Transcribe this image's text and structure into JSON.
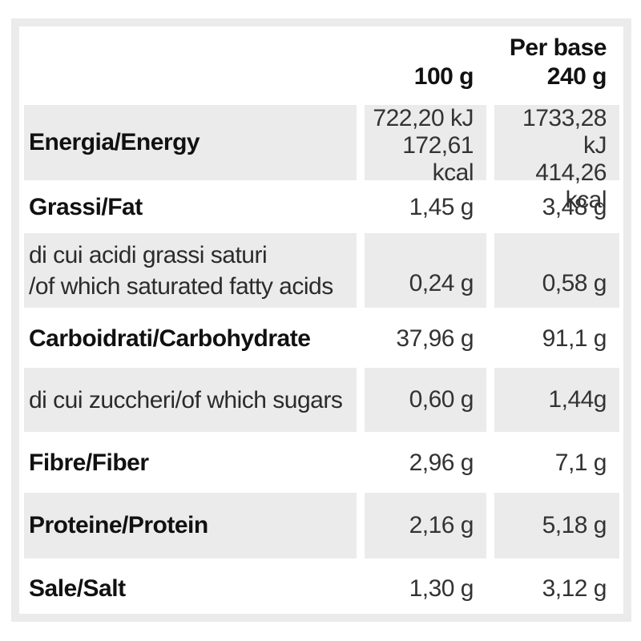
{
  "colors": {
    "row_shade": "#ebebeb",
    "frame": "#ebebeb",
    "label_text": "#111111",
    "value_text": "#333333",
    "background": "#ffffff"
  },
  "header": {
    "col_100g": "100 g",
    "per_base_line1": "Per base",
    "per_base_line2": "240 g"
  },
  "rows": [
    {
      "name": "energy",
      "label": "Energia/Energy",
      "values_100g": [
        "722,20 kJ",
        "172,61 kcal"
      ],
      "values_base": [
        "1733,28 kJ",
        "414,26 kcal"
      ],
      "shaded": true
    },
    {
      "name": "fat",
      "label": "Grassi/Fat",
      "value_100g": "1,45 g",
      "value_base": "3,48 g",
      "shaded": false
    },
    {
      "name": "saturated-fat",
      "label_line1": "di cui acidi grassi saturi",
      "label_line2": "/of which saturated fatty acids",
      "value_100g": "0,24 g",
      "value_base": "0,58 g",
      "shaded": true
    },
    {
      "name": "carbohydrate",
      "label": "Carboidrati/Carbohydrate",
      "value_100g": "37,96 g",
      "value_base": "91,1 g",
      "shaded": false
    },
    {
      "name": "sugars",
      "label": "di cui zuccheri/of which sugars",
      "value_100g": "0,60 g",
      "value_base": "1,44g",
      "shaded": true
    },
    {
      "name": "fiber",
      "label": "Fibre/Fiber",
      "value_100g": "2,96 g",
      "value_base": "7,1 g",
      "shaded": false
    },
    {
      "name": "protein",
      "label": "Proteine/Protein",
      "value_100g": "2,16 g",
      "value_base": "5,18 g",
      "shaded": true
    },
    {
      "name": "salt",
      "label": "Sale/Salt",
      "value_100g": "1,30 g",
      "value_base": "3,12 g",
      "shaded": false
    }
  ]
}
